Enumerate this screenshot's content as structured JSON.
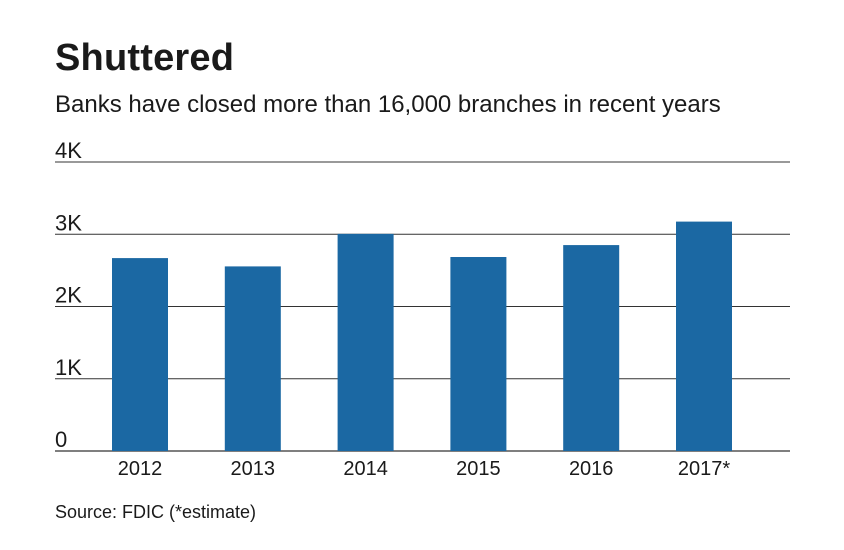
{
  "title": "Shuttered",
  "subtitle": "Banks have closed more than 16,000 branches in recent years",
  "source": "Source: FDIC (*estimate)",
  "colors": {
    "bar": "#1b68a3",
    "grid": "#333333",
    "text": "#1a1a1a"
  },
  "chart_data": {
    "type": "bar",
    "categories": [
      "2012",
      "2013",
      "2014",
      "2015",
      "2016",
      "2017*"
    ],
    "values": [
      2670,
      2555,
      3005,
      2685,
      2850,
      3175
    ],
    "ylim": [
      0,
      4000
    ],
    "yticks": [
      {
        "value": 0,
        "label": "0"
      },
      {
        "value": 1000,
        "label": "1K"
      },
      {
        "value": 2000,
        "label": "2K"
      },
      {
        "value": 3000,
        "label": "3K"
      },
      {
        "value": 4000,
        "label": "4K"
      }
    ],
    "xlabel": "",
    "ylabel": "",
    "grid": true,
    "legend": "none"
  }
}
